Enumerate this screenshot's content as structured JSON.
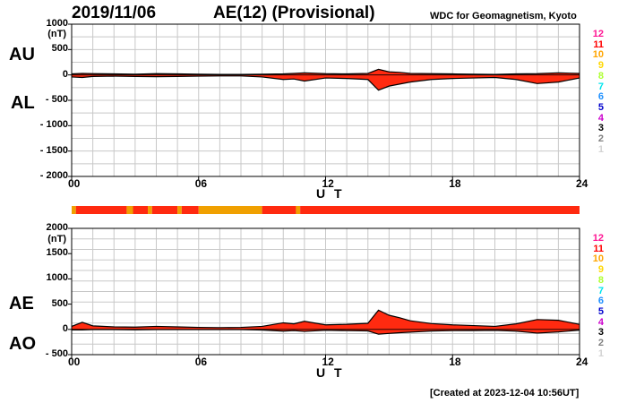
{
  "header": {
    "date": "2019/11/06",
    "title": "AE(12) (Provisional)",
    "org": "WDC for Geomagnetism, Kyoto"
  },
  "footer": "[Created at 2023-12-04 10:56UT]",
  "colors": {
    "fill": "#ff2a10",
    "trace": "#000000",
    "quality_good": "#ff2a10",
    "quality_partial": "#f0a000",
    "grid": "#c8c8c8"
  },
  "legend": [
    {
      "label": "12",
      "color": "#ff1493"
    },
    {
      "label": "11",
      "color": "#ff0000"
    },
    {
      "label": "10",
      "color": "#ffa500"
    },
    {
      "label": "9",
      "color": "#ffd700"
    },
    {
      "label": "8",
      "color": "#adff2f"
    },
    {
      "label": "7",
      "color": "#00e5ee"
    },
    {
      "label": "6",
      "color": "#1e90ff"
    },
    {
      "label": "5",
      "color": "#0000cd"
    },
    {
      "label": "4",
      "color": "#cc00cc"
    },
    {
      "label": "3",
      "color": "#000000"
    },
    {
      "label": "2",
      "color": "#808080"
    },
    {
      "label": "1",
      "color": "#d3d3d3"
    }
  ],
  "chart_data": [
    {
      "type": "area",
      "panel": "AU/AL",
      "ylabel_top": "AU",
      "ylabel_bottom": "AL",
      "yunit": "(nT)",
      "ylim": [
        -2000,
        1000
      ],
      "yticks": [
        1000,
        500,
        0,
        -500,
        -1000,
        -1500,
        -2000
      ],
      "ytick_labels": [
        "1000",
        "500",
        "0",
        "- 500",
        "- 1000",
        "- 1500",
        "- 2000"
      ],
      "xlim": [
        0,
        24
      ],
      "xticks": [
        0,
        6,
        12,
        18,
        24
      ],
      "xtick_labels": [
        "00",
        "06",
        "12",
        "18",
        "24"
      ],
      "xlabel": "U T",
      "grid": true,
      "series": [
        {
          "name": "AU",
          "x": [
            0,
            0.5,
            1,
            2,
            3,
            4,
            5,
            6,
            7,
            8,
            9,
            10,
            10.5,
            11,
            12,
            13,
            14,
            14.5,
            15,
            15.5,
            16,
            17,
            18,
            19,
            20,
            21,
            22,
            23,
            24
          ],
          "values": [
            20,
            30,
            25,
            20,
            15,
            25,
            20,
            15,
            10,
            10,
            15,
            20,
            30,
            40,
            25,
            20,
            30,
            110,
            60,
            50,
            30,
            25,
            20,
            15,
            10,
            20,
            25,
            40,
            30
          ]
        },
        {
          "name": "AL",
          "x": [
            0,
            0.5,
            1,
            2,
            3,
            4,
            5,
            6,
            7,
            8,
            9,
            10,
            10.5,
            11,
            12,
            13,
            14,
            14.5,
            15,
            15.5,
            16,
            17,
            18,
            19,
            20,
            21,
            22,
            23,
            24
          ],
          "values": [
            -40,
            -50,
            -30,
            -25,
            -30,
            -35,
            -30,
            -25,
            -20,
            -20,
            -40,
            -90,
            -80,
            -120,
            -60,
            -70,
            -90,
            -300,
            -220,
            -180,
            -140,
            -90,
            -70,
            -60,
            -50,
            -90,
            -170,
            -140,
            -60
          ]
        }
      ]
    },
    {
      "type": "area",
      "panel": "AE/AO",
      "ylabel_top": "AE",
      "ylabel_bottom": "AO",
      "yunit": "(nT)",
      "ylim": [
        -500,
        2000
      ],
      "yticks": [
        2000,
        1500,
        1000,
        500,
        0,
        -500
      ],
      "ytick_labels": [
        "2000",
        "1500",
        "1000",
        "500",
        "0",
        "- 500"
      ],
      "xlim": [
        0,
        24
      ],
      "xticks": [
        0,
        6,
        12,
        18,
        24
      ],
      "xtick_labels": [
        "00",
        "06",
        "12",
        "18",
        "24"
      ],
      "xlabel": "U T",
      "grid": true,
      "series": [
        {
          "name": "AE",
          "x": [
            0,
            0.5,
            1,
            2,
            3,
            4,
            5,
            6,
            7,
            8,
            9,
            10,
            10.5,
            11,
            12,
            13,
            14,
            14.5,
            15,
            15.5,
            16,
            17,
            18,
            19,
            20,
            21,
            22,
            23,
            24
          ],
          "values": [
            60,
            140,
            70,
            50,
            45,
            60,
            50,
            40,
            35,
            40,
            60,
            130,
            110,
            160,
            90,
            100,
            120,
            380,
            280,
            230,
            170,
            115,
            90,
            75,
            60,
            110,
            195,
            180,
            100
          ]
        },
        {
          "name": "AO",
          "x": [
            0,
            0.5,
            1,
            2,
            3,
            4,
            5,
            6,
            7,
            8,
            9,
            10,
            10.5,
            11,
            12,
            13,
            14,
            14.5,
            15,
            15.5,
            16,
            17,
            18,
            19,
            20,
            21,
            22,
            23,
            24
          ],
          "values": [
            -10,
            -10,
            -3,
            -3,
            -8,
            -5,
            -5,
            -5,
            -5,
            -5,
            -13,
            -35,
            -25,
            -40,
            -18,
            -25,
            -30,
            -95,
            -80,
            -65,
            -55,
            -33,
            -25,
            -23,
            -20,
            -35,
            -73,
            -50,
            -15
          ]
        }
      ]
    }
  ],
  "quality_strip": {
    "segments": [
      {
        "start": 0,
        "end": 0.2,
        "status": "partial"
      },
      {
        "start": 0.2,
        "end": 2.6,
        "status": "good"
      },
      {
        "start": 2.6,
        "end": 2.9,
        "status": "partial"
      },
      {
        "start": 2.9,
        "end": 3.6,
        "status": "good"
      },
      {
        "start": 3.6,
        "end": 3.8,
        "status": "partial"
      },
      {
        "start": 3.8,
        "end": 5.0,
        "status": "good"
      },
      {
        "start": 5.0,
        "end": 5.2,
        "status": "partial"
      },
      {
        "start": 5.2,
        "end": 6.0,
        "status": "good"
      },
      {
        "start": 6.0,
        "end": 9.0,
        "status": "partial"
      },
      {
        "start": 9.0,
        "end": 10.6,
        "status": "good"
      },
      {
        "start": 10.6,
        "end": 10.8,
        "status": "partial"
      },
      {
        "start": 10.8,
        "end": 24,
        "status": "good"
      }
    ]
  }
}
